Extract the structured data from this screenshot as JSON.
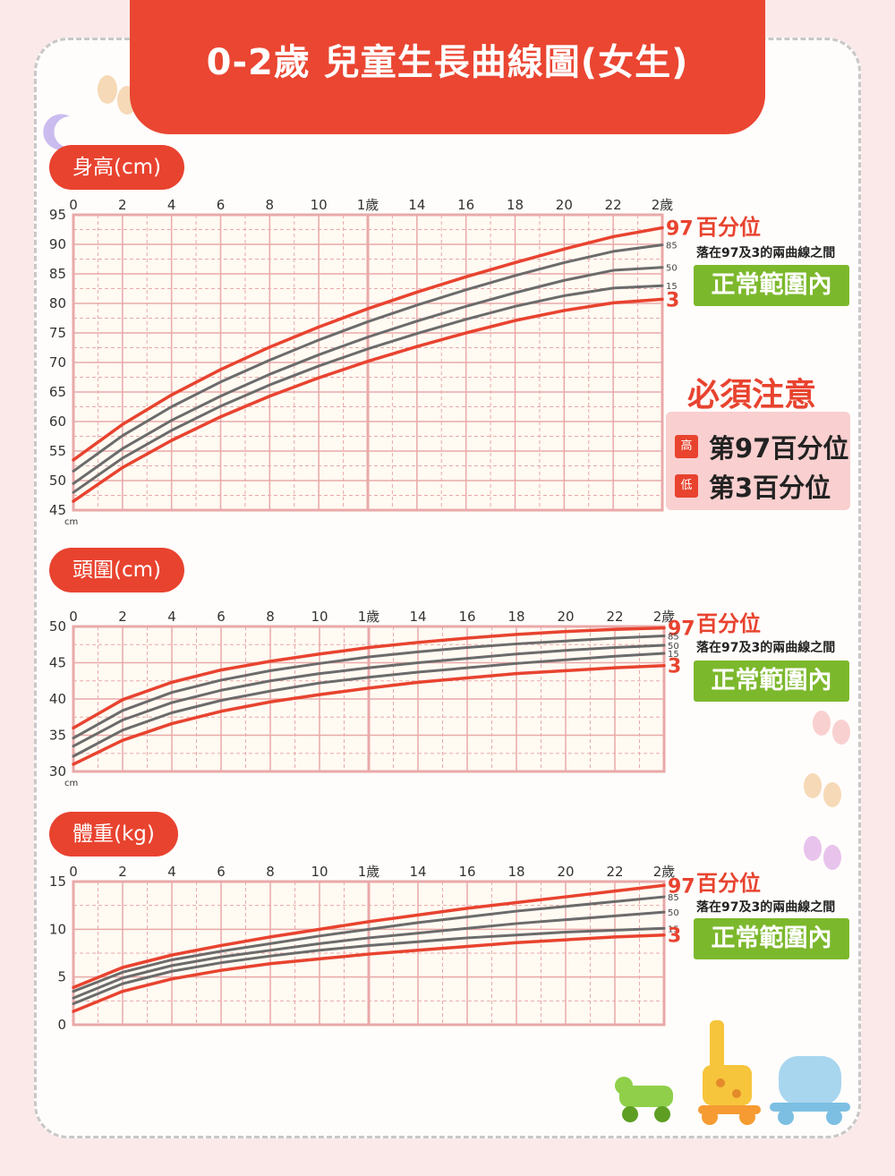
{
  "title": "0-2歲 兒童生長曲線圖(女生)",
  "legend": {
    "percentile_title": "百分位",
    "note": "落在97及3的兩曲線之間",
    "badge": "正常範圍內"
  },
  "warning": {
    "title": "必須注意",
    "high_tag": "高",
    "high_text": "第97百分位",
    "low_tag": "低",
    "low_text": "第3百分位"
  },
  "colors": {
    "red": "#e8432f",
    "gray": "#6b6b6b",
    "grid": "#e9a9a9",
    "badge": "#7cb82c"
  },
  "chart_data": [
    {
      "type": "line",
      "section_label": "身高(cm)",
      "y_unit": "cm",
      "x_ticks": [
        "0",
        "2",
        "4",
        "6",
        "8",
        "10",
        "1歲",
        "14",
        "16",
        "18",
        "20",
        "22",
        "2歲"
      ],
      "y_ticks": [
        45,
        50,
        55,
        60,
        65,
        70,
        75,
        80,
        85,
        90,
        95
      ],
      "xlim": [
        0,
        24
      ],
      "ylim": [
        45,
        95
      ],
      "x": [
        0,
        2,
        4,
        6,
        8,
        10,
        12,
        14,
        16,
        18,
        20,
        22,
        24
      ],
      "series": [
        {
          "name": "97",
          "values": [
            53.5,
            59.5,
            64.5,
            68.8,
            72.6,
            76.0,
            79.1,
            81.9,
            84.5,
            86.9,
            89.2,
            91.3,
            92.8
          ]
        },
        {
          "name": "85",
          "values": [
            51.6,
            57.6,
            62.5,
            66.7,
            70.4,
            73.8,
            76.9,
            79.7,
            82.3,
            84.7,
            86.9,
            88.8,
            89.9
          ]
        },
        {
          "name": "50",
          "values": [
            49.5,
            55.4,
            60.2,
            64.3,
            68.0,
            71.3,
            74.3,
            77.0,
            79.5,
            81.8,
            83.9,
            85.6,
            86.1
          ]
        },
        {
          "name": "15",
          "values": [
            48.0,
            53.8,
            58.5,
            62.6,
            66.2,
            69.4,
            72.3,
            74.9,
            77.3,
            79.5,
            81.3,
            82.6,
            83.0
          ]
        },
        {
          "name": "3",
          "values": [
            46.5,
            52.2,
            56.8,
            60.8,
            64.3,
            67.4,
            70.2,
            72.7,
            75.0,
            77.1,
            78.8,
            80.1,
            80.7
          ]
        }
      ]
    },
    {
      "type": "line",
      "section_label": "頭圍(cm)",
      "y_unit": "cm",
      "x_ticks": [
        "0",
        "2",
        "4",
        "6",
        "8",
        "10",
        "1歲",
        "14",
        "16",
        "18",
        "20",
        "22",
        "2歲"
      ],
      "y_ticks": [
        30,
        35,
        40,
        45,
        50
      ],
      "xlim": [
        0,
        24
      ],
      "ylim": [
        30,
        50
      ],
      "x": [
        0,
        2,
        4,
        6,
        8,
        10,
        12,
        14,
        16,
        18,
        20,
        22,
        24
      ],
      "series": [
        {
          "name": "97",
          "values": [
            36.0,
            39.9,
            42.3,
            44.0,
            45.2,
            46.2,
            47.1,
            47.8,
            48.4,
            48.9,
            49.3,
            49.6,
            49.8
          ]
        },
        {
          "name": "85",
          "values": [
            34.6,
            38.4,
            40.9,
            42.6,
            43.9,
            44.9,
            45.8,
            46.5,
            47.1,
            47.6,
            48.0,
            48.4,
            48.7
          ]
        },
        {
          "name": "50",
          "values": [
            33.5,
            37.1,
            39.5,
            41.2,
            42.5,
            43.5,
            44.3,
            45.0,
            45.6,
            46.2,
            46.7,
            47.1,
            47.4
          ]
        },
        {
          "name": "15",
          "values": [
            32.1,
            35.7,
            38.1,
            39.8,
            41.1,
            42.2,
            43.0,
            43.7,
            44.3,
            44.9,
            45.4,
            45.9,
            46.3
          ]
        },
        {
          "name": "3",
          "values": [
            31.0,
            34.3,
            36.6,
            38.3,
            39.6,
            40.6,
            41.5,
            42.3,
            42.9,
            43.5,
            43.9,
            44.3,
            44.6
          ]
        }
      ]
    },
    {
      "type": "line",
      "section_label": "體重(kg)",
      "y_unit": "",
      "x_ticks": [
        "0",
        "2",
        "4",
        "6",
        "8",
        "10",
        "1歲",
        "14",
        "16",
        "18",
        "20",
        "22",
        "2歲"
      ],
      "y_ticks": [
        0,
        5,
        10,
        15
      ],
      "xlim": [
        0,
        24
      ],
      "ylim": [
        0,
        15
      ],
      "x": [
        0,
        2,
        4,
        6,
        8,
        10,
        12,
        14,
        16,
        18,
        20,
        22,
        24
      ],
      "series": [
        {
          "name": "97",
          "values": [
            3.9,
            6.0,
            7.3,
            8.3,
            9.2,
            10.0,
            10.8,
            11.5,
            12.2,
            12.8,
            13.4,
            14.0,
            14.6
          ]
        },
        {
          "name": "85",
          "values": [
            3.5,
            5.5,
            6.8,
            7.7,
            8.5,
            9.3,
            10.0,
            10.7,
            11.3,
            11.9,
            12.4,
            12.9,
            13.4
          ]
        },
        {
          "name": "50",
          "values": [
            2.8,
            4.9,
            6.2,
            7.1,
            7.8,
            8.5,
            9.1,
            9.6,
            10.1,
            10.6,
            11.0,
            11.4,
            11.8
          ]
        },
        {
          "name": "15",
          "values": [
            2.2,
            4.3,
            5.6,
            6.5,
            7.2,
            7.8,
            8.3,
            8.7,
            9.1,
            9.4,
            9.7,
            9.9,
            10.1
          ]
        },
        {
          "name": "3",
          "values": [
            1.4,
            3.5,
            4.8,
            5.7,
            6.4,
            6.9,
            7.4,
            7.8,
            8.2,
            8.6,
            8.9,
            9.2,
            9.4
          ]
        }
      ]
    }
  ]
}
